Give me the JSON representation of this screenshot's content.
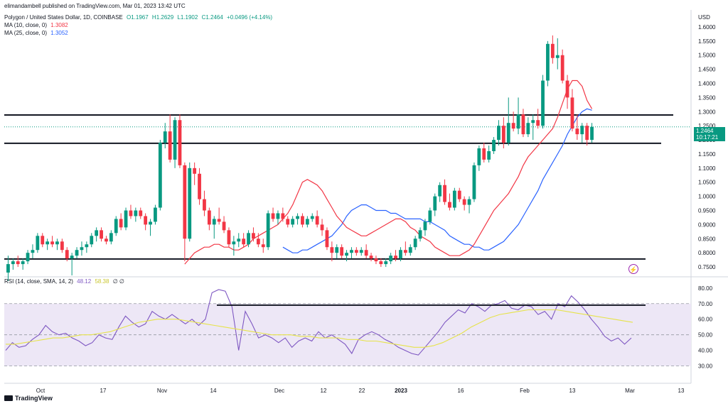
{
  "header": {
    "publisher": "elimandambell published on TradingView.com, Mar 01, 2023 13:42 UTC",
    "symbol": "Polygon / United States Dollar, 1D, COINBASE",
    "open": "O1.1967",
    "high": "H1.2629",
    "low": "L1.1902",
    "close": "C1.2464",
    "change": "+0.0496 (+4.14%)",
    "ma10_label": "MA (10, close, 0)",
    "ma10_value": "1.3082",
    "ma25_label": "MA (25, close, 0)",
    "ma25_value": "1.3052",
    "rsi_label": "RSI (14, close, SMA, 14, 2)",
    "rsi_value": "48.12",
    "rsi_ma_value": "58.38",
    "rsi_extra": "∅ ∅",
    "currency": "USD"
  },
  "price_tag": {
    "price": "1.2464",
    "countdown": "10:17:21"
  },
  "footer": {
    "brand": "TradingView"
  },
  "colors": {
    "up": "#089981",
    "down": "#f23645",
    "ma10": "#f23645",
    "ma25": "#2962ff",
    "rsi": "#7e57c2",
    "rsi_ma": "#e6e34a",
    "rsi_band": "#ede7f6"
  },
  "chart_data": {
    "type": "candlestick",
    "price_axis": {
      "ticks": [
        "1.6000",
        "1.5500",
        "1.5000",
        "1.4500",
        "1.4000",
        "1.3500",
        "1.3000",
        "1.2500",
        "1.2000",
        "1.1500",
        "1.1000",
        "1.0500",
        "1.0000",
        "0.9500",
        "0.9000",
        "0.8500",
        "0.8000",
        "0.7500"
      ],
      "range": [
        0.72,
        1.62
      ]
    },
    "rsi_axis": {
      "ticks": [
        "80.00",
        "70.00",
        "60.00",
        "50.00",
        "40.00",
        "30.00"
      ],
      "range": [
        28,
        84
      ],
      "bands": [
        70,
        50,
        30
      ]
    },
    "time_axis": [
      "Oct",
      "17",
      "Nov",
      "14",
      "Dec",
      "12",
      "22",
      "2023",
      "16",
      "Feb",
      "13",
      "Mar",
      "13"
    ],
    "horizontal_lines": [
      1.288,
      1.188,
      0.778
    ],
    "rsi_trend_line": 69,
    "candles": [
      [
        0.73,
        0.79,
        0.7,
        0.76
      ],
      [
        0.76,
        0.78,
        0.74,
        0.77
      ],
      [
        0.77,
        0.79,
        0.75,
        0.76
      ],
      [
        0.76,
        0.78,
        0.74,
        0.77
      ],
      [
        0.77,
        0.81,
        0.76,
        0.8
      ],
      [
        0.8,
        0.83,
        0.78,
        0.81
      ],
      [
        0.81,
        0.87,
        0.8,
        0.86
      ],
      [
        0.86,
        0.87,
        0.82,
        0.83
      ],
      [
        0.83,
        0.85,
        0.81,
        0.84
      ],
      [
        0.84,
        0.86,
        0.82,
        0.83
      ],
      [
        0.83,
        0.85,
        0.81,
        0.84
      ],
      [
        0.84,
        0.85,
        0.8,
        0.81
      ],
      [
        0.81,
        0.82,
        0.77,
        0.78
      ],
      [
        0.78,
        0.8,
        0.72,
        0.79
      ],
      [
        0.79,
        0.82,
        0.78,
        0.81
      ],
      [
        0.81,
        0.84,
        0.79,
        0.82
      ],
      [
        0.82,
        0.84,
        0.8,
        0.83
      ],
      [
        0.83,
        0.87,
        0.82,
        0.86
      ],
      [
        0.86,
        0.89,
        0.84,
        0.88
      ],
      [
        0.88,
        0.89,
        0.84,
        0.85
      ],
      [
        0.85,
        0.86,
        0.83,
        0.84
      ],
      [
        0.84,
        0.88,
        0.83,
        0.87
      ],
      [
        0.87,
        0.93,
        0.86,
        0.92
      ],
      [
        0.92,
        0.94,
        0.88,
        0.89
      ],
      [
        0.89,
        0.96,
        0.88,
        0.95
      ],
      [
        0.95,
        0.97,
        0.92,
        0.93
      ],
      [
        0.93,
        0.96,
        0.91,
        0.95
      ],
      [
        0.95,
        0.96,
        0.92,
        0.93
      ],
      [
        0.93,
        0.94,
        0.88,
        0.9
      ],
      [
        0.9,
        0.92,
        0.86,
        0.91
      ],
      [
        0.91,
        0.97,
        0.9,
        0.96
      ],
      [
        0.96,
        1.2,
        0.95,
        1.19
      ],
      [
        1.19,
        1.26,
        1.17,
        1.23
      ],
      [
        1.23,
        1.29,
        1.12,
        1.13
      ],
      [
        1.13,
        1.28,
        1.1,
        1.27
      ],
      [
        1.27,
        1.29,
        1.1,
        1.11
      ],
      [
        1.11,
        1.12,
        0.77,
        0.85
      ],
      [
        0.85,
        1.12,
        0.84,
        1.1
      ],
      [
        1.1,
        1.12,
        1.04,
        1.08
      ],
      [
        1.08,
        1.1,
        0.97,
        0.99
      ],
      [
        0.99,
        1.02,
        0.93,
        0.95
      ],
      [
        0.95,
        0.96,
        0.88,
        0.9
      ],
      [
        0.9,
        0.93,
        0.85,
        0.92
      ],
      [
        0.92,
        0.96,
        0.9,
        0.91
      ],
      [
        0.91,
        0.93,
        0.87,
        0.88
      ],
      [
        0.88,
        0.89,
        0.82,
        0.83
      ],
      [
        0.83,
        0.86,
        0.79,
        0.84
      ],
      [
        0.84,
        0.87,
        0.82,
        0.85
      ],
      [
        0.85,
        0.87,
        0.82,
        0.83
      ],
      [
        0.83,
        0.88,
        0.82,
        0.87
      ],
      [
        0.87,
        0.89,
        0.84,
        0.85
      ],
      [
        0.85,
        0.87,
        0.82,
        0.83
      ],
      [
        0.83,
        0.85,
        0.8,
        0.82
      ],
      [
        0.82,
        0.95,
        0.81,
        0.94
      ],
      [
        0.94,
        0.96,
        0.91,
        0.92
      ],
      [
        0.92,
        0.95,
        0.9,
        0.94
      ],
      [
        0.94,
        0.96,
        0.91,
        0.92
      ],
      [
        0.92,
        0.93,
        0.89,
        0.9
      ],
      [
        0.9,
        0.93,
        0.89,
        0.92
      ],
      [
        0.92,
        0.94,
        0.9,
        0.93
      ],
      [
        0.93,
        0.94,
        0.89,
        0.9
      ],
      [
        0.9,
        0.93,
        0.89,
        0.92
      ],
      [
        0.92,
        0.94,
        0.91,
        0.93
      ],
      [
        0.93,
        0.95,
        0.89,
        0.9
      ],
      [
        0.9,
        0.92,
        0.86,
        0.88
      ],
      [
        0.88,
        0.89,
        0.81,
        0.82
      ],
      [
        0.82,
        0.84,
        0.77,
        0.8
      ],
      [
        0.8,
        0.83,
        0.78,
        0.82
      ],
      [
        0.82,
        0.83,
        0.78,
        0.79
      ],
      [
        0.79,
        0.81,
        0.77,
        0.8
      ],
      [
        0.8,
        0.82,
        0.78,
        0.81
      ],
      [
        0.81,
        0.82,
        0.79,
        0.8
      ],
      [
        0.8,
        0.82,
        0.79,
        0.81
      ],
      [
        0.81,
        0.83,
        0.78,
        0.79
      ],
      [
        0.79,
        0.8,
        0.77,
        0.78
      ],
      [
        0.78,
        0.79,
        0.76,
        0.77
      ],
      [
        0.77,
        0.78,
        0.75,
        0.76
      ],
      [
        0.76,
        0.78,
        0.75,
        0.77
      ],
      [
        0.77,
        0.8,
        0.76,
        0.79
      ],
      [
        0.79,
        0.81,
        0.77,
        0.78
      ],
      [
        0.78,
        0.82,
        0.77,
        0.81
      ],
      [
        0.81,
        0.84,
        0.79,
        0.8
      ],
      [
        0.8,
        0.83,
        0.79,
        0.82
      ],
      [
        0.82,
        0.86,
        0.81,
        0.85
      ],
      [
        0.85,
        0.89,
        0.84,
        0.88
      ],
      [
        0.88,
        0.92,
        0.86,
        0.91
      ],
      [
        0.91,
        0.96,
        0.9,
        0.95
      ],
      [
        0.95,
        1.01,
        0.93,
        1.0
      ],
      [
        1.0,
        1.05,
        0.98,
        1.04
      ],
      [
        1.04,
        1.06,
        0.97,
        0.98
      ],
      [
        0.98,
        1.01,
        0.95,
        0.96
      ],
      [
        0.96,
        1.03,
        0.95,
        1.02
      ],
      [
        1.02,
        1.03,
        0.98,
        0.99
      ],
      [
        0.99,
        1.0,
        0.95,
        0.97
      ],
      [
        0.97,
        1.0,
        0.94,
        0.99
      ],
      [
        0.99,
        1.12,
        0.98,
        1.11
      ],
      [
        1.11,
        1.18,
        1.09,
        1.17
      ],
      [
        1.17,
        1.19,
        1.12,
        1.13
      ],
      [
        1.13,
        1.18,
        1.12,
        1.16
      ],
      [
        1.16,
        1.21,
        1.15,
        1.2
      ],
      [
        1.2,
        1.27,
        1.18,
        1.25
      ],
      [
        1.25,
        1.28,
        1.17,
        1.19
      ],
      [
        1.19,
        1.35,
        1.18,
        1.26
      ],
      [
        1.26,
        1.3,
        1.23,
        1.24
      ],
      [
        1.24,
        1.35,
        1.22,
        1.29
      ],
      [
        1.29,
        1.31,
        1.21,
        1.22
      ],
      [
        1.22,
        1.28,
        1.21,
        1.26
      ],
      [
        1.26,
        1.29,
        1.2,
        1.27
      ],
      [
        1.27,
        1.31,
        1.24,
        1.25
      ],
      [
        1.25,
        1.43,
        1.24,
        1.41
      ],
      [
        1.41,
        1.55,
        1.39,
        1.54
      ],
      [
        1.54,
        1.57,
        1.47,
        1.49
      ],
      [
        1.49,
        1.56,
        1.45,
        1.5
      ],
      [
        1.5,
        1.52,
        1.4,
        1.41
      ],
      [
        1.41,
        1.43,
        1.31,
        1.35
      ],
      [
        1.35,
        1.38,
        1.23,
        1.24
      ],
      [
        1.24,
        1.29,
        1.2,
        1.22
      ],
      [
        1.22,
        1.26,
        1.19,
        1.25
      ],
      [
        1.25,
        1.26,
        1.18,
        1.2
      ],
      [
        1.2,
        1.26,
        1.19,
        1.246
      ]
    ],
    "ma10": [
      0.76,
      0.78,
      0.8,
      0.81,
      0.82,
      0.82,
      0.83,
      0.83,
      0.82,
      0.82,
      0.81,
      0.81,
      0.82,
      0.83,
      0.85,
      0.86,
      0.87,
      0.88,
      0.89,
      0.9,
      0.92,
      0.94,
      0.97,
      1.01,
      1.05,
      1.06,
      1.05,
      1.04,
      1.02,
      0.99,
      0.96,
      0.93,
      0.91,
      0.89,
      0.88,
      0.87,
      0.86,
      0.86,
      0.87,
      0.88,
      0.89,
      0.9,
      0.91,
      0.92,
      0.92,
      0.91,
      0.89,
      0.88,
      0.86,
      0.85,
      0.84,
      0.82,
      0.81,
      0.8,
      0.79,
      0.79,
      0.79,
      0.8,
      0.81,
      0.83,
      0.86,
      0.89,
      0.92,
      0.95,
      0.97,
      0.99,
      1.01,
      1.04,
      1.07,
      1.11,
      1.14,
      1.16,
      1.18,
      1.2,
      1.22,
      1.24,
      1.28,
      1.33,
      1.38,
      1.41,
      1.41,
      1.39,
      1.34,
      1.31
    ],
    "ma25": [
      0.82,
      0.81,
      0.8,
      0.8,
      0.81,
      0.81,
      0.82,
      0.83,
      0.84,
      0.85,
      0.86,
      0.88,
      0.9,
      0.93,
      0.95,
      0.96,
      0.97,
      0.97,
      0.96,
      0.95,
      0.95,
      0.95,
      0.94,
      0.94,
      0.93,
      0.92,
      0.92,
      0.92,
      0.92,
      0.91,
      0.91,
      0.9,
      0.89,
      0.88,
      0.86,
      0.85,
      0.84,
      0.83,
      0.83,
      0.82,
      0.82,
      0.81,
      0.81,
      0.82,
      0.83,
      0.84,
      0.86,
      0.88,
      0.9,
      0.93,
      0.96,
      0.99,
      1.02,
      1.06,
      1.09,
      1.12,
      1.15,
      1.18,
      1.22,
      1.25,
      1.28,
      1.3,
      1.31,
      1.305
    ],
    "rsi": [
      40,
      45,
      42,
      43,
      47,
      50,
      56,
      52,
      50,
      51,
      48,
      46,
      43,
      45,
      50,
      48,
      47,
      55,
      62,
      58,
      55,
      57,
      65,
      62,
      60,
      63,
      60,
      57,
      60,
      56,
      60,
      77,
      79,
      78,
      68,
      40,
      65,
      57,
      48,
      50,
      48,
      45,
      48,
      42,
      46,
      48,
      46,
      52,
      48,
      50,
      47,
      44,
      38,
      47,
      50,
      52,
      50,
      47,
      45,
      42,
      40,
      38,
      37,
      42,
      47,
      52,
      58,
      62,
      66,
      64,
      70,
      68,
      65,
      69,
      70,
      72,
      67,
      66,
      69,
      68,
      63,
      65,
      60,
      70,
      68,
      75,
      71,
      66,
      60,
      55,
      49,
      46,
      48,
      44,
      48
    ],
    "rsi_ma": [
      44,
      44,
      45,
      46,
      47,
      48,
      48,
      49,
      50,
      50,
      51,
      52,
      54,
      56,
      58,
      59,
      60,
      60,
      60,
      59,
      58,
      57,
      56,
      55,
      54,
      53,
      52,
      51,
      50,
      50,
      50,
      49,
      49,
      48,
      48,
      48,
      47,
      47,
      46,
      46,
      45,
      44,
      43,
      42,
      42,
      43,
      45,
      48,
      51,
      55,
      58,
      61,
      63,
      64,
      65,
      66,
      66,
      66,
      66,
      65,
      64,
      63,
      62,
      61,
      60,
      59,
      58
    ]
  }
}
